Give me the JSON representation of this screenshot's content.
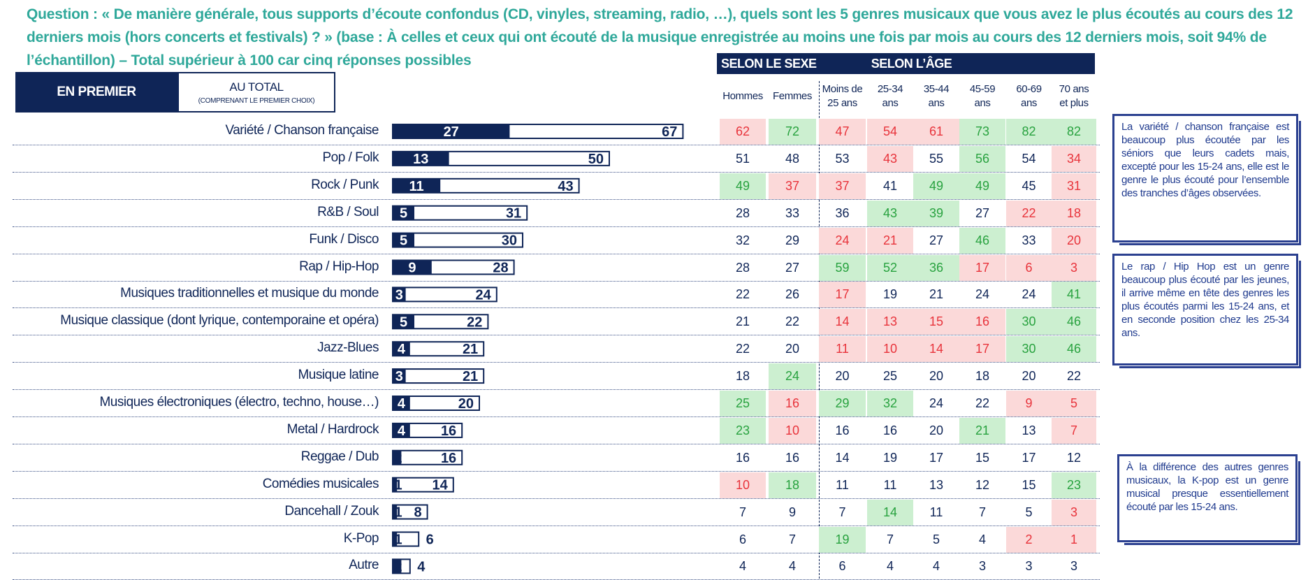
{
  "question": "Question : « De manière générale, tous supports d’écoute confondus (CD, vinyles, streaming, radio, …), quels sont les 5 genres musicaux que vous avez le plus écoutés au cours des 12 derniers mois (hors concerts et festivals) ? » (base : À celles et ceux qui ont écouté de la musique enregistrée au moins une fois par mois au cours des 12 derniers mois, soit 94% de l’échantillon) – Total supérieur à 100 car cinq réponses possibles",
  "legend": {
    "premier": "EN PREMIER",
    "total": "AU TOTAL",
    "total_sub": "(COMPRENANT LE PREMIER CHOIX)"
  },
  "headers": {
    "sexe": "SELON LE SEXE",
    "age": "SELON L’ÂGE"
  },
  "columns": [
    {
      "line1": "Hommes",
      "line2": ""
    },
    {
      "line1": "Femmes",
      "line2": ""
    },
    {
      "line1": "Moins de",
      "line2": "25 ans"
    },
    {
      "line1": "25-34",
      "line2": "ans"
    },
    {
      "line1": "35-44",
      "line2": "ans"
    },
    {
      "line1": "45-59",
      "line2": "ans"
    },
    {
      "line1": "60-69",
      "line2": "ans"
    },
    {
      "line1": "70 ans",
      "line2": "et plus"
    }
  ],
  "notes": [
    "La variété / chanson française est beaucoup plus écoutée par les séniors que leurs cadets mais, excepté pour les 15-24 ans, elle est le genre le plus écouté pour l’ensemble des tranches d’âges observées.",
    "Le rap / Hip Hop est un genre beaucoup plus écouté par les jeunes, il arrive même en tête des genres les plus écoutés parmi les 15-24 ans, et en seconde position chez les 25-34 ans.",
    "À la différence des autres genres musicaux, la K-pop est un genre musical presque essentiellement écouté par les 15-24 ans."
  ],
  "colors": {
    "navy": "#0f2557",
    "teal": "#2fa89a",
    "green_bg": "#ccefd0",
    "green_text": "#28a23f",
    "red_bg": "#fbd9d9",
    "red_text": "#e8333b"
  },
  "chart_data": {
    "type": "bar",
    "orientation": "horizontal",
    "series": [
      {
        "name": "EN PREMIER",
        "values": [
          27,
          13,
          11,
          5,
          5,
          9,
          3,
          5,
          4,
          3,
          4,
          4,
          2,
          1,
          1,
          1,
          2
        ]
      },
      {
        "name": "AU TOTAL",
        "values": [
          67,
          50,
          43,
          31,
          30,
          28,
          24,
          22,
          21,
          21,
          20,
          16,
          16,
          14,
          8,
          6,
          4
        ]
      }
    ],
    "categories": [
      "Variété / Chanson française",
      "Pop / Folk",
      "Rock / Punk",
      "R&B / Soul",
      "Funk / Disco",
      "Rap / Hip-Hop",
      "Musiques traditionnelles et musique du monde",
      "Musique classique (dont lyrique, contemporaine et opéra)",
      "Jazz-Blues",
      "Musique latine",
      "Musiques électroniques (électro, techno, house…)",
      "Metal / Hardrock",
      "Reggae / Dub",
      "Comédies musicales",
      "Dancehall / Zouk",
      "K-Pop",
      "Autre"
    ],
    "premier_labels": [
      "27",
      "13",
      "11",
      "5",
      "5",
      "9",
      "3",
      "5",
      "4",
      "3",
      "4",
      "4",
      "2",
      "1",
      "1",
      "1",
      "2"
    ],
    "total_labels": [
      "67",
      "50",
      "43",
      "31",
      "30",
      "28",
      "24",
      "22",
      "21",
      "21",
      "20",
      "16",
      "16",
      "14",
      "8",
      "6",
      "4"
    ],
    "table": {
      "columns": [
        "Hommes",
        "Femmes",
        "Moins de 25 ans",
        "25-34 ans",
        "35-44 ans",
        "45-59 ans",
        "60-69 ans",
        "70 ans et plus"
      ],
      "rows": [
        [
          62,
          72,
          47,
          54,
          61,
          73,
          82,
          82
        ],
        [
          51,
          48,
          53,
          43,
          55,
          56,
          54,
          34
        ],
        [
          49,
          37,
          37,
          41,
          49,
          49,
          45,
          31
        ],
        [
          28,
          33,
          36,
          43,
          39,
          27,
          22,
          18
        ],
        [
          32,
          29,
          24,
          21,
          27,
          46,
          33,
          20
        ],
        [
          28,
          27,
          59,
          52,
          36,
          17,
          6,
          3
        ],
        [
          22,
          26,
          17,
          19,
          21,
          24,
          24,
          41
        ],
        [
          21,
          22,
          14,
          13,
          15,
          16,
          30,
          46
        ],
        [
          22,
          20,
          11,
          10,
          14,
          17,
          30,
          46
        ],
        [
          18,
          24,
          20,
          25,
          20,
          18,
          20,
          22
        ],
        [
          25,
          16,
          29,
          32,
          24,
          22,
          9,
          5
        ],
        [
          23,
          10,
          16,
          16,
          20,
          21,
          13,
          7
        ],
        [
          16,
          16,
          14,
          19,
          17,
          15,
          17,
          12
        ],
        [
          10,
          18,
          11,
          11,
          13,
          12,
          15,
          23
        ],
        [
          7,
          9,
          7,
          14,
          11,
          7,
          5,
          3
        ],
        [
          6,
          7,
          19,
          7,
          5,
          4,
          2,
          1
        ],
        [
          4,
          4,
          6,
          4,
          4,
          3,
          3,
          3
        ]
      ],
      "highlight": [
        [
          "neg",
          "pos",
          "neg",
          "neg",
          "neg",
          "pos",
          "pos",
          "pos"
        ],
        [
          "",
          "",
          "",
          "neg",
          "",
          "pos",
          "",
          "neg"
        ],
        [
          "pos",
          "neg",
          "neg",
          "",
          "pos",
          "pos",
          "",
          "neg"
        ],
        [
          "",
          "",
          "",
          "pos",
          "pos",
          "",
          "neg",
          "neg"
        ],
        [
          "",
          "",
          "neg",
          "neg",
          "",
          "pos",
          "",
          "neg"
        ],
        [
          "",
          "",
          "pos",
          "pos",
          "pos",
          "neg",
          "neg",
          "neg"
        ],
        [
          "",
          "",
          "neg",
          "",
          "",
          "",
          "",
          "pos"
        ],
        [
          "",
          "",
          "neg",
          "neg",
          "neg",
          "neg",
          "pos",
          "pos"
        ],
        [
          "",
          "",
          "neg",
          "neg",
          "neg",
          "neg",
          "pos",
          "pos"
        ],
        [
          "",
          "pos",
          "",
          "",
          "",
          "",
          "",
          ""
        ],
        [
          "pos",
          "neg",
          "pos",
          "pos",
          "",
          "",
          "neg",
          "neg"
        ],
        [
          "pos",
          "neg",
          "",
          "",
          "",
          "pos",
          "",
          "neg"
        ],
        [
          "",
          "",
          "",
          "",
          "",
          "",
          "",
          ""
        ],
        [
          "neg",
          "pos",
          "",
          "",
          "",
          "",
          "",
          "pos"
        ],
        [
          "",
          "",
          "",
          "pos",
          "",
          "",
          "",
          "neg"
        ],
        [
          "",
          "",
          "pos",
          "",
          "",
          "",
          "neg",
          "neg"
        ],
        [
          "",
          "",
          "",
          "",
          "",
          "",
          "",
          ""
        ]
      ]
    }
  }
}
